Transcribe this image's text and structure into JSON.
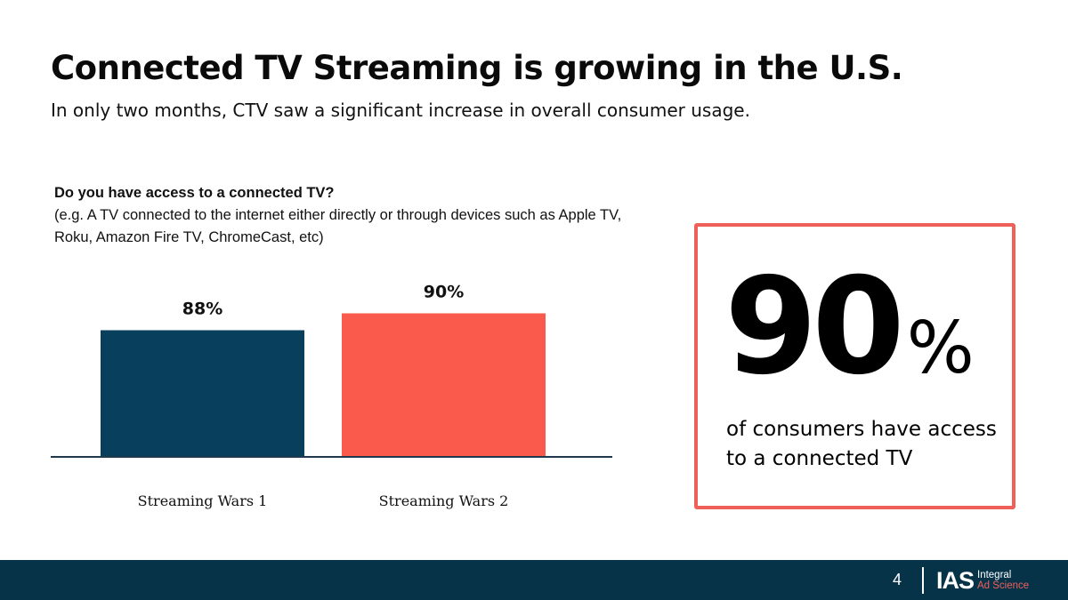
{
  "slide": {
    "title": "Connected TV Streaming is growing in the U.S.",
    "subtitle": "In only two months, CTV saw a significant increase in overall consumer usage."
  },
  "question": {
    "main": "Do you have access to a connected TV?",
    "note": " (e.g. A TV connected to the internet either directly or through devices such as Apple TV, Roku, Amazon Fire TV, ChromeCast, etc)"
  },
  "chart_data": {
    "type": "bar",
    "title": "Do you have access to a connected TV?",
    "categories": [
      "Streaming Wars 1",
      "Streaming Wars 2"
    ],
    "values": [
      88,
      90
    ],
    "data_labels": [
      "88%",
      "90%"
    ],
    "units": "%",
    "colors": [
      "#073f5c",
      "#fa5a4b"
    ],
    "xlabel": "",
    "ylabel": "",
    "grid": false,
    "legend": "none"
  },
  "callout": {
    "value": "90",
    "unit": "%",
    "text": "of consumers have access to a connected TV",
    "border_color": "#f0605a"
  },
  "footer": {
    "page_number": "4",
    "logo_mark": "IAS",
    "logo_line1": "Integral",
    "logo_line2": "Ad Science",
    "background": "#073349"
  }
}
